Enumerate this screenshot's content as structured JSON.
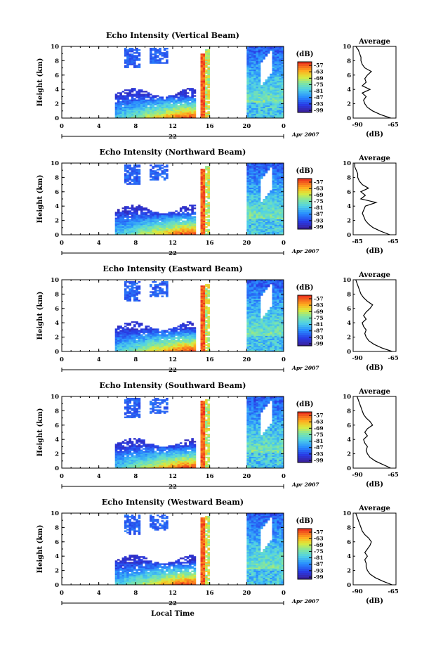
{
  "figure": {
    "xlabel_bottom": "Local Time",
    "date_label": "Apr 2007",
    "day_label": "22",
    "cb_unit": "(dB)",
    "avg_title": "Average",
    "avg_xlabel": "(dB)",
    "ylabel": "Height (km)"
  },
  "chart_data": [
    {
      "type": "heatmap",
      "title": "Echo Intensity (Vertical Beam)",
      "ylabel": "Height (km)",
      "xlabel": "",
      "xlim": [
        0,
        24
      ],
      "ylim": [
        0,
        10
      ],
      "x_ticks": [
        "0",
        "4",
        "8",
        "12",
        "16",
        "20",
        "0"
      ],
      "y_ticks": [
        "0",
        "2",
        "4",
        "6",
        "8",
        "10"
      ],
      "colorbar": {
        "label": "(dB)",
        "ticks": [
          "-57",
          "-63",
          "-69",
          "-75",
          "-81",
          "-87",
          "-93",
          "-99"
        ]
      },
      "average_profile": {
        "title": "Average",
        "xlabel": "(dB)",
        "x_ticks": [
          "-90",
          "-65"
        ],
        "xlim": [
          -95,
          -62
        ],
        "height_km": [
          0,
          0.5,
          1,
          1.5,
          2,
          2.5,
          3,
          3.5,
          4,
          4.5,
          5,
          5.5,
          6,
          6.5,
          7,
          7.5,
          8,
          8.5,
          9,
          9.5,
          10
        ],
        "value_db": [
          -66,
          -74,
          -80,
          -84,
          -86,
          -87,
          -85,
          -88,
          -82,
          -88,
          -85,
          -86,
          -84,
          -81,
          -86,
          -88,
          -89,
          -89,
          -90,
          -91,
          -93
        ]
      }
    },
    {
      "type": "heatmap",
      "title": "Echo Intensity (Northward Beam)",
      "ylabel": "Height (km)",
      "xlabel": "",
      "xlim": [
        0,
        24
      ],
      "ylim": [
        0,
        10
      ],
      "x_ticks": [
        "0",
        "4",
        "8",
        "12",
        "16",
        "20",
        "0"
      ],
      "y_ticks": [
        "0",
        "2",
        "4",
        "6",
        "8",
        "10"
      ],
      "colorbar": {
        "label": "(dB)",
        "ticks": [
          "-57",
          "-63",
          "-69",
          "-75",
          "-81",
          "-87",
          "-93",
          "-99"
        ]
      },
      "average_profile": {
        "title": "Average",
        "xlabel": "(dB)",
        "x_ticks": [
          "-85",
          "-65"
        ],
        "xlim": [
          -90,
          -62
        ],
        "height_km": [
          0,
          0.5,
          1,
          1.5,
          2,
          2.5,
          3,
          3.5,
          4,
          4.5,
          5,
          5.5,
          6,
          6.5,
          7,
          7.5,
          8,
          8.5,
          9,
          9.5,
          10
        ],
        "value_db": [
          -66,
          -72,
          -77,
          -80,
          -82,
          -83,
          -84,
          -83,
          -82,
          -75,
          -85,
          -82,
          -85,
          -80,
          -84,
          -86,
          -87,
          -87,
          -88,
          -89,
          -89
        ]
      }
    },
    {
      "type": "heatmap",
      "title": "Echo Intensity (Eastward Beam)",
      "ylabel": "Height (km)",
      "xlabel": "",
      "xlim": [
        0,
        24
      ],
      "ylim": [
        0,
        10
      ],
      "x_ticks": [
        "0",
        "4",
        "8",
        "12",
        "16",
        "20",
        "0"
      ],
      "y_ticks": [
        "0",
        "2",
        "4",
        "6",
        "8",
        "10"
      ],
      "colorbar": {
        "label": "(dB)",
        "ticks": [
          "-57",
          "-63",
          "-69",
          "-75",
          "-81",
          "-87",
          "-93",
          "-99"
        ]
      },
      "average_profile": {
        "title": "Average",
        "xlabel": "(dB)",
        "x_ticks": [
          "-90",
          "-65"
        ],
        "xlim": [
          -95,
          -62
        ],
        "height_km": [
          0,
          0.5,
          1,
          1.5,
          2,
          2.5,
          3,
          3.5,
          4,
          4.5,
          5,
          5.5,
          6,
          6.5,
          7,
          7.5,
          8,
          8.5,
          9,
          9.5,
          10
        ],
        "value_db": [
          -65,
          -73,
          -79,
          -83,
          -85,
          -86,
          -85,
          -87,
          -88,
          -85,
          -87,
          -85,
          -82,
          -80,
          -84,
          -87,
          -89,
          -90,
          -91,
          -92,
          -93
        ]
      }
    },
    {
      "type": "heatmap",
      "title": "Echo Intensity (Southward Beam)",
      "ylabel": "Height (km)",
      "xlabel": "",
      "xlim": [
        0,
        24
      ],
      "ylim": [
        0,
        10
      ],
      "x_ticks": [
        "0",
        "4",
        "8",
        "12",
        "16",
        "20",
        "0"
      ],
      "y_ticks": [
        "0",
        "2",
        "4",
        "6",
        "8",
        "10"
      ],
      "colorbar": {
        "label": "(dB)",
        "ticks": [
          "-57",
          "-63",
          "-69",
          "-75",
          "-81",
          "-87",
          "-93",
          "-99"
        ]
      },
      "average_profile": {
        "title": "Average",
        "xlabel": "(dB)",
        "x_ticks": [
          "-90",
          "-65"
        ],
        "xlim": [
          -95,
          -62
        ],
        "height_km": [
          0,
          0.5,
          1,
          1.5,
          2,
          2.5,
          3,
          3.5,
          4,
          4.5,
          5,
          5.5,
          6,
          6.5,
          7,
          7.5,
          8,
          8.5,
          9,
          9.5,
          10
        ],
        "value_db": [
          -66,
          -72,
          -78,
          -82,
          -84,
          -85,
          -84,
          -86,
          -87,
          -84,
          -86,
          -84,
          -80,
          -82,
          -85,
          -87,
          -88,
          -89,
          -90,
          -91,
          -92
        ]
      }
    },
    {
      "type": "heatmap",
      "title": "Echo Intensity (Westward Beam)",
      "ylabel": "Height (km)",
      "xlabel": "Local Time",
      "xlim": [
        0,
        24
      ],
      "ylim": [
        0,
        10
      ],
      "x_ticks": [
        "0",
        "4",
        "8",
        "12",
        "16",
        "20",
        "0"
      ],
      "y_ticks": [
        "0",
        "2",
        "4",
        "6",
        "8",
        "10"
      ],
      "colorbar": {
        "label": "(dB)",
        "ticks": [
          "-57",
          "-63",
          "-69",
          "-75",
          "-81",
          "-87",
          "-93",
          "-99"
        ]
      },
      "average_profile": {
        "title": "Average",
        "xlabel": "(dB)",
        "x_ticks": [
          "-90",
          "-65"
        ],
        "xlim": [
          -95,
          -62
        ],
        "height_km": [
          0,
          0.5,
          1,
          1.5,
          2,
          2.5,
          3,
          3.5,
          4,
          4.5,
          5,
          5.5,
          6,
          6.5,
          7,
          7.5,
          8,
          8.5,
          9,
          9.5,
          10
        ],
        "value_db": [
          -65,
          -72,
          -78,
          -82,
          -84,
          -85,
          -85,
          -86,
          -84,
          -86,
          -84,
          -82,
          -81,
          -83,
          -86,
          -88,
          -89,
          -90,
          -91,
          -92,
          -93
        ]
      }
    }
  ]
}
